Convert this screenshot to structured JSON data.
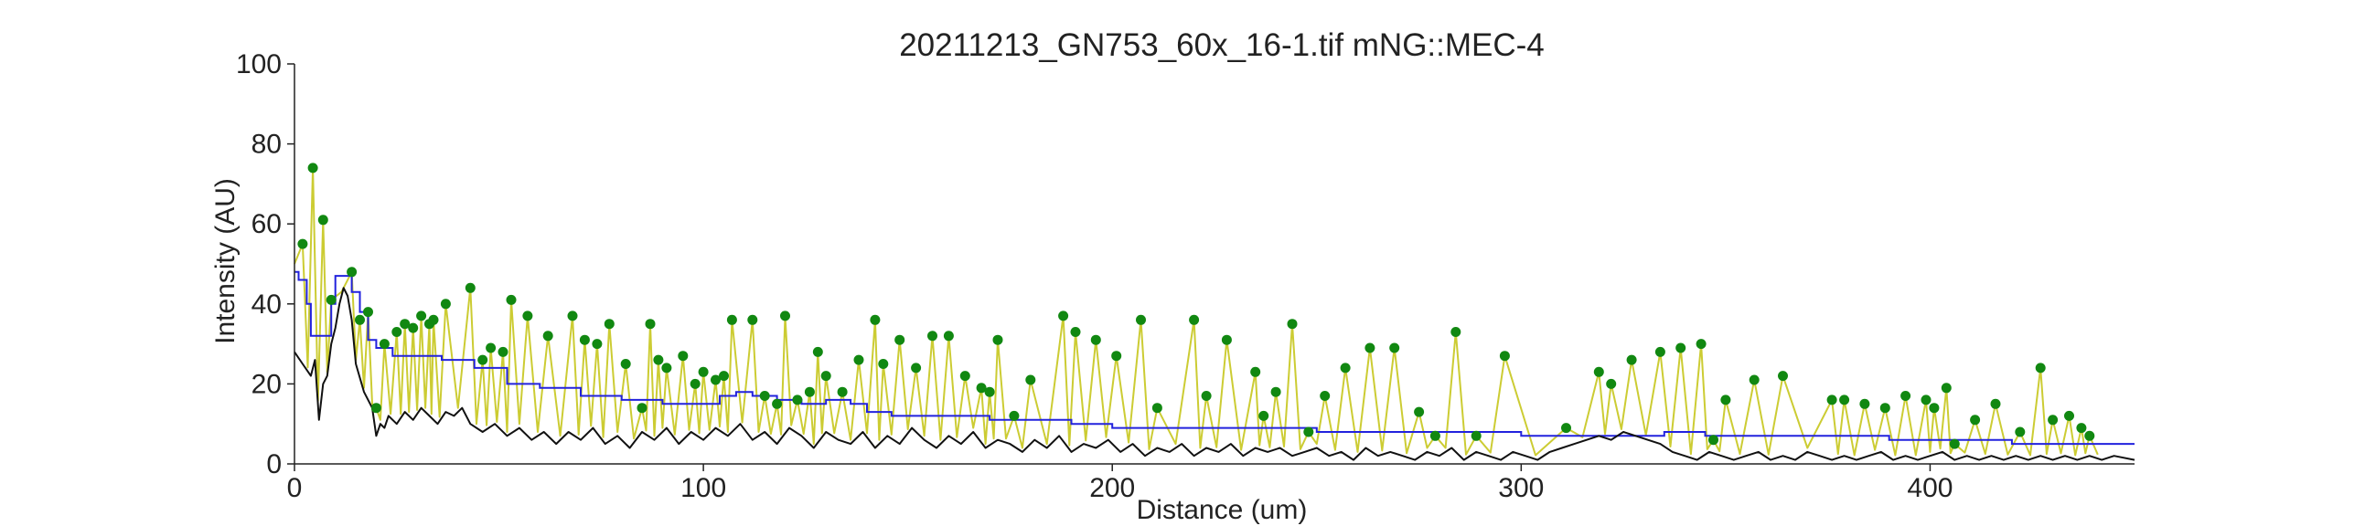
{
  "chart_data": {
    "type": "line",
    "title": "20211213_GN753_60x_16-1.tif mNG::MEC-4",
    "xlabel": "Distance (um)",
    "ylabel": "Intensity (AU)",
    "xlim": [
      0,
      450
    ],
    "ylim": [
      0,
      100
    ],
    "x_ticks": [
      0,
      100,
      200,
      300,
      400
    ],
    "y_ticks": [
      0,
      20,
      40,
      60,
      80,
      100
    ],
    "grid": false,
    "legend": "none",
    "colors": {
      "signal": "#cccc33",
      "peaks": "#118811",
      "rolling_threshold": "#2222dd",
      "baseline": "#111111",
      "axis": "#222222"
    },
    "peaks": {
      "x": [
        2,
        4.5,
        7,
        9,
        14,
        16,
        18,
        20,
        22,
        25,
        27,
        29,
        31,
        33,
        34,
        37,
        43,
        46,
        48,
        51,
        53,
        57,
        62,
        68,
        71,
        74,
        77,
        81,
        85,
        87,
        89,
        91,
        95,
        98,
        100,
        103,
        105,
        107,
        112,
        115,
        118,
        120,
        123,
        126,
        128,
        130,
        134,
        138,
        142,
        144,
        148,
        152,
        156,
        160,
        164,
        168,
        170,
        172,
        176,
        180,
        188,
        191,
        196,
        201,
        207,
        211,
        220,
        223,
        228,
        235,
        237,
        240,
        244,
        248,
        252,
        257,
        263,
        269,
        275,
        279,
        284,
        289,
        296,
        311,
        319,
        322,
        327,
        334,
        339,
        344,
        347,
        350,
        357,
        364,
        376,
        379,
        384,
        389,
        394,
        399,
        401,
        404,
        406,
        411,
        416,
        422,
        427,
        430,
        434,
        437,
        439
      ],
      "y": [
        55,
        74,
        61,
        41,
        48,
        36,
        38,
        14,
        30,
        33,
        35,
        34,
        37,
        35,
        36,
        40,
        44,
        26,
        29,
        28,
        41,
        37,
        32,
        37,
        31,
        30,
        35,
        25,
        14,
        35,
        26,
        24,
        27,
        20,
        23,
        21,
        22,
        36,
        36,
        17,
        15,
        37,
        16,
        18,
        28,
        22,
        18,
        26,
        36,
        25,
        31,
        24,
        32,
        32,
        22,
        19,
        18,
        31,
        12,
        21,
        37,
        33,
        31,
        27,
        36,
        14,
        36,
        17,
        31,
        23,
        12,
        18,
        35,
        8,
        17,
        24,
        29,
        29,
        13,
        7,
        33,
        7,
        27,
        9,
        23,
        20,
        26,
        28,
        29,
        30,
        6,
        16,
        21,
        22,
        16,
        16,
        15,
        14,
        17,
        16,
        14,
        19,
        5,
        11,
        15,
        8,
        24,
        11,
        12,
        9,
        7
      ]
    },
    "rolling_threshold": {
      "x": [
        0,
        1,
        3,
        4,
        8,
        9,
        10,
        12,
        14,
        16,
        18,
        20,
        24,
        30,
        36,
        44,
        52,
        60,
        70,
        80,
        90,
        100,
        104,
        108,
        112,
        118,
        124,
        130,
        136,
        140,
        146,
        152,
        160,
        170,
        180,
        190,
        200,
        210,
        220,
        230,
        240,
        250,
        260,
        270,
        280,
        290,
        300,
        310,
        320,
        330,
        335,
        340,
        345,
        350,
        360,
        370,
        380,
        390,
        400,
        410,
        420,
        430,
        440,
        450
      ],
      "y": [
        48,
        46,
        40,
        32,
        32,
        40,
        47,
        47,
        43,
        38,
        31,
        29,
        27,
        27,
        26,
        24,
        20,
        19,
        17,
        16,
        15,
        15,
        17,
        18,
        17,
        16,
        15,
        16,
        15,
        13,
        12,
        12,
        12,
        11,
        11,
        10,
        9,
        9,
        9,
        9,
        9,
        8,
        8,
        8,
        8,
        8,
        7,
        7,
        7,
        7,
        8,
        8,
        7,
        7,
        7,
        7,
        7,
        6,
        6,
        6,
        5,
        5,
        5,
        5
      ]
    },
    "baseline": {
      "x": [
        0,
        2,
        4,
        5,
        6,
        7,
        8,
        9,
        10,
        11,
        12,
        13,
        14,
        15,
        17,
        19,
        20,
        21,
        22,
        23,
        25,
        27,
        29,
        31,
        33,
        35,
        37,
        39,
        41,
        43,
        46,
        49,
        52,
        55,
        58,
        61,
        64,
        67,
        70,
        73,
        76,
        79,
        82,
        85,
        88,
        91,
        94,
        97,
        100,
        103,
        106,
        109,
        112,
        115,
        118,
        121,
        124,
        127,
        130,
        133,
        136,
        139,
        142,
        145,
        148,
        151,
        154,
        157,
        160,
        163,
        166,
        169,
        172,
        175,
        178,
        181,
        184,
        187,
        190,
        193,
        196,
        199,
        202,
        205,
        208,
        211,
        214,
        217,
        220,
        223,
        226,
        229,
        232,
        235,
        238,
        241,
        244,
        247,
        250,
        253,
        256,
        259,
        262,
        265,
        268,
        271,
        274,
        277,
        280,
        283,
        286,
        289,
        292,
        295,
        298,
        301,
        304,
        307,
        310,
        313,
        316,
        319,
        322,
        325,
        328,
        331,
        334,
        337,
        340,
        343,
        346,
        349,
        352,
        355,
        358,
        361,
        364,
        367,
        370,
        373,
        376,
        379,
        382,
        385,
        388,
        391,
        394,
        397,
        400,
        403,
        406,
        409,
        412,
        415,
        418,
        421,
        424,
        427,
        430,
        433,
        436,
        439,
        442,
        445,
        450
      ],
      "y": [
        28,
        25,
        22,
        26,
        11,
        20,
        22,
        30,
        34,
        40,
        44,
        42,
        36,
        25,
        18,
        14,
        7,
        10,
        9,
        12,
        10,
        13,
        11,
        14,
        12,
        10,
        13,
        12,
        14,
        10,
        8,
        10,
        7,
        9,
        6,
        8,
        5,
        8,
        6,
        9,
        5,
        7,
        4,
        8,
        6,
        9,
        5,
        8,
        6,
        9,
        7,
        10,
        6,
        8,
        5,
        9,
        7,
        4,
        8,
        6,
        5,
        8,
        4,
        7,
        5,
        9,
        6,
        4,
        7,
        5,
        8,
        4,
        6,
        5,
        3,
        6,
        4,
        7,
        3,
        5,
        4,
        6,
        3,
        5,
        2,
        4,
        3,
        5,
        2,
        4,
        3,
        5,
        2,
        4,
        3,
        4,
        2,
        3,
        4,
        2,
        3,
        1,
        4,
        2,
        3,
        2,
        1,
        3,
        2,
        4,
        1,
        3,
        2,
        1,
        3,
        2,
        1,
        3,
        4,
        5,
        6,
        7,
        6,
        8,
        7,
        6,
        5,
        3,
        2,
        1,
        3,
        2,
        1,
        2,
        3,
        1,
        2,
        1,
        3,
        2,
        1,
        2,
        1,
        2,
        3,
        1,
        2,
        1,
        2,
        3,
        1,
        2,
        1,
        2,
        1,
        2,
        1,
        2,
        1,
        2,
        1,
        2,
        1,
        2,
        1
      ]
    }
  }
}
